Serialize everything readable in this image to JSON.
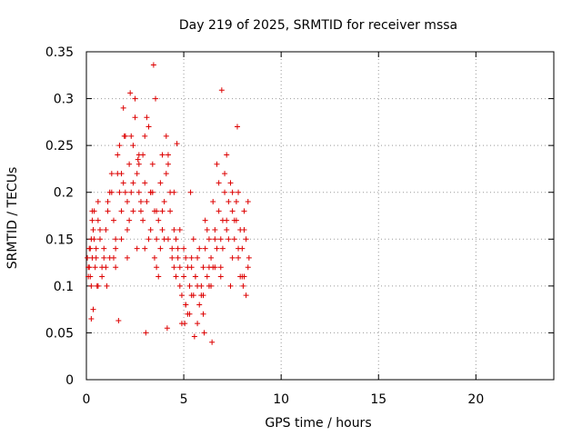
{
  "chart_data": {
    "type": "scatter",
    "title": "Day 219 of 2025, SRMTID for receiver mssa",
    "xlabel": "GPS time / hours",
    "ylabel": "SRMTID / TECUs",
    "xlim": [
      0,
      24
    ],
    "ylim": [
      0,
      0.35
    ],
    "x_ticks": [
      0,
      5,
      10,
      15,
      20
    ],
    "x_tick_labels": [
      "0",
      "5",
      "10",
      "15",
      "20"
    ],
    "y_ticks": [
      0,
      0.05,
      0.1,
      0.15,
      0.2,
      0.25,
      0.3,
      0.35
    ],
    "y_tick_labels": [
      "0",
      "0.05",
      "0.1",
      "0.15",
      "0.2",
      "0.25",
      "0.3",
      "0.35"
    ],
    "grid": true,
    "legend": false,
    "marker": "+",
    "color": "#dd0000",
    "series": [
      {
        "x": [
          0.05,
          0.1,
          0.15,
          0.2,
          0.25,
          0.3,
          0.35,
          0.4,
          0.45,
          0.5,
          0.55,
          0.6,
          0.7,
          0.8,
          0.9,
          1.0,
          1.1,
          1.2,
          1.3,
          1.4,
          1.5,
          1.6,
          1.7,
          1.8,
          1.9,
          2.0,
          2.1,
          2.2,
          2.3,
          2.4,
          2.5,
          2.6,
          2.7,
          2.8,
          2.9,
          3.0,
          3.1,
          3.2,
          3.3,
          3.4,
          3.5,
          3.6,
          3.7,
          3.8,
          3.9,
          4.0,
          4.1,
          4.2,
          4.3,
          4.4,
          4.5,
          4.6,
          4.7,
          4.8,
          4.9,
          5.0,
          5.1,
          5.2,
          5.3,
          5.4,
          5.5,
          5.6,
          5.7,
          5.8,
          5.9,
          6.0,
          6.1,
          6.2,
          6.3,
          6.4,
          6.5,
          6.6,
          6.7,
          6.8,
          6.9,
          7.0,
          7.1,
          7.2,
          7.3,
          7.4,
          7.5,
          7.6,
          7.7,
          7.8,
          7.9,
          8.0,
          8.1,
          8.2,
          8.3,
          8.35,
          0.1,
          0.2,
          0.3,
          0.5,
          0.7,
          1.0,
          1.3,
          1.5,
          1.7,
          1.9,
          2.1,
          2.3,
          2.5,
          2.7,
          2.9,
          3.1,
          3.3,
          3.5,
          3.7,
          3.9,
          4.1,
          4.3,
          4.5,
          4.7,
          4.9,
          5.1,
          5.3,
          5.5,
          5.7,
          5.9,
          6.1,
          6.3,
          6.5,
          6.7,
          6.9,
          7.1,
          7.3,
          7.5,
          7.7,
          7.9,
          8.1,
          8.3,
          0.15,
          0.25,
          0.4,
          0.6,
          0.8,
          1.1,
          1.4,
          1.6,
          1.8,
          2.0,
          2.2,
          2.4,
          2.6,
          2.8,
          3.0,
          3.2,
          3.4,
          3.6,
          3.8,
          4.0,
          4.2,
          4.4,
          4.6,
          4.8,
          5.0,
          5.2,
          5.4,
          5.6,
          5.8,
          6.0,
          6.2,
          6.4,
          6.6,
          6.8,
          7.0,
          7.2,
          7.4,
          7.6,
          7.8,
          8.0,
          8.2,
          0.3,
          0.6,
          0.9,
          1.2,
          1.5,
          1.8,
          2.1,
          2.4,
          2.7,
          3.0,
          3.3,
          3.6,
          3.9,
          4.2,
          4.5,
          4.8,
          5.1,
          5.4,
          5.7,
          6.0,
          6.3,
          6.6,
          6.9,
          7.2,
          7.5,
          7.8,
          8.1,
          3.45,
          6.95,
          1.65,
          2.25,
          4.15,
          6.45,
          5.55,
          7.75,
          2.65,
          4.65,
          0.35,
          1.05,
          3.05,
          5.05,
          6.05,
          8.05,
          0.25,
          1.95,
          3.55,
          5.35
        ],
        "y": [
          0.13,
          0.12,
          0.14,
          0.11,
          0.15,
          0.13,
          0.16,
          0.18,
          0.12,
          0.14,
          0.1,
          0.17,
          0.15,
          0.12,
          0.14,
          0.16,
          0.19,
          0.13,
          0.22,
          0.17,
          0.15,
          0.24,
          0.2,
          0.18,
          0.21,
          0.26,
          0.19,
          0.23,
          0.2,
          0.25,
          0.28,
          0.22,
          0.2,
          0.18,
          0.24,
          0.21,
          0.19,
          0.27,
          0.16,
          0.2,
          0.18,
          0.15,
          0.17,
          0.14,
          0.16,
          0.19,
          0.22,
          0.23,
          0.18,
          0.14,
          0.12,
          0.15,
          0.13,
          0.1,
          0.09,
          0.11,
          0.08,
          0.07,
          0.1,
          0.12,
          0.09,
          0.11,
          0.13,
          0.08,
          0.1,
          0.12,
          0.14,
          0.11,
          0.15,
          0.13,
          0.12,
          0.16,
          0.14,
          0.18,
          0.15,
          0.17,
          0.2,
          0.16,
          0.19,
          0.21,
          0.18,
          0.15,
          0.17,
          0.2,
          0.16,
          0.14,
          0.18,
          0.15,
          0.12,
          0.13,
          0.11,
          0.14,
          0.17,
          0.13,
          0.16,
          0.12,
          0.2,
          0.14,
          0.25,
          0.29,
          0.16,
          0.26,
          0.3,
          0.23,
          0.17,
          0.28,
          0.2,
          0.13,
          0.11,
          0.24,
          0.26,
          0.2,
          0.16,
          0.14,
          0.06,
          0.13,
          0.07,
          0.15,
          0.06,
          0.09,
          0.17,
          0.1,
          0.19,
          0.23,
          0.12,
          0.22,
          0.15,
          0.13,
          0.19,
          0.11,
          0.16,
          0.19,
          0.12,
          0.1,
          0.15,
          0.19,
          0.11,
          0.18,
          0.13,
          0.22,
          0.15,
          0.2,
          0.17,
          0.21,
          0.14,
          0.19,
          0.26,
          0.15,
          0.23,
          0.18,
          0.21,
          0.15,
          0.24,
          0.13,
          0.11,
          0.16,
          0.14,
          0.12,
          0.09,
          0.11,
          0.14,
          0.07,
          0.16,
          0.1,
          0.12,
          0.21,
          0.14,
          0.24,
          0.1,
          0.17,
          0.13,
          0.11,
          0.09,
          0.18,
          0.1,
          0.13,
          0.2,
          0.12,
          0.22,
          0.13,
          0.18,
          0.24,
          0.14,
          0.2,
          0.12,
          0.18,
          0.15,
          0.2,
          0.12,
          0.08,
          0.13,
          0.1,
          0.09,
          0.12,
          0.15,
          0.11,
          0.17,
          0.2,
          0.14,
          0.11,
          0.336,
          0.309,
          0.063,
          0.306,
          0.055,
          0.04,
          0.046,
          0.27,
          0.235,
          0.252,
          0.075,
          0.1,
          0.05,
          0.06,
          0.05,
          0.1,
          0.065,
          0.26,
          0.3,
          0.2
        ]
      }
    ]
  }
}
